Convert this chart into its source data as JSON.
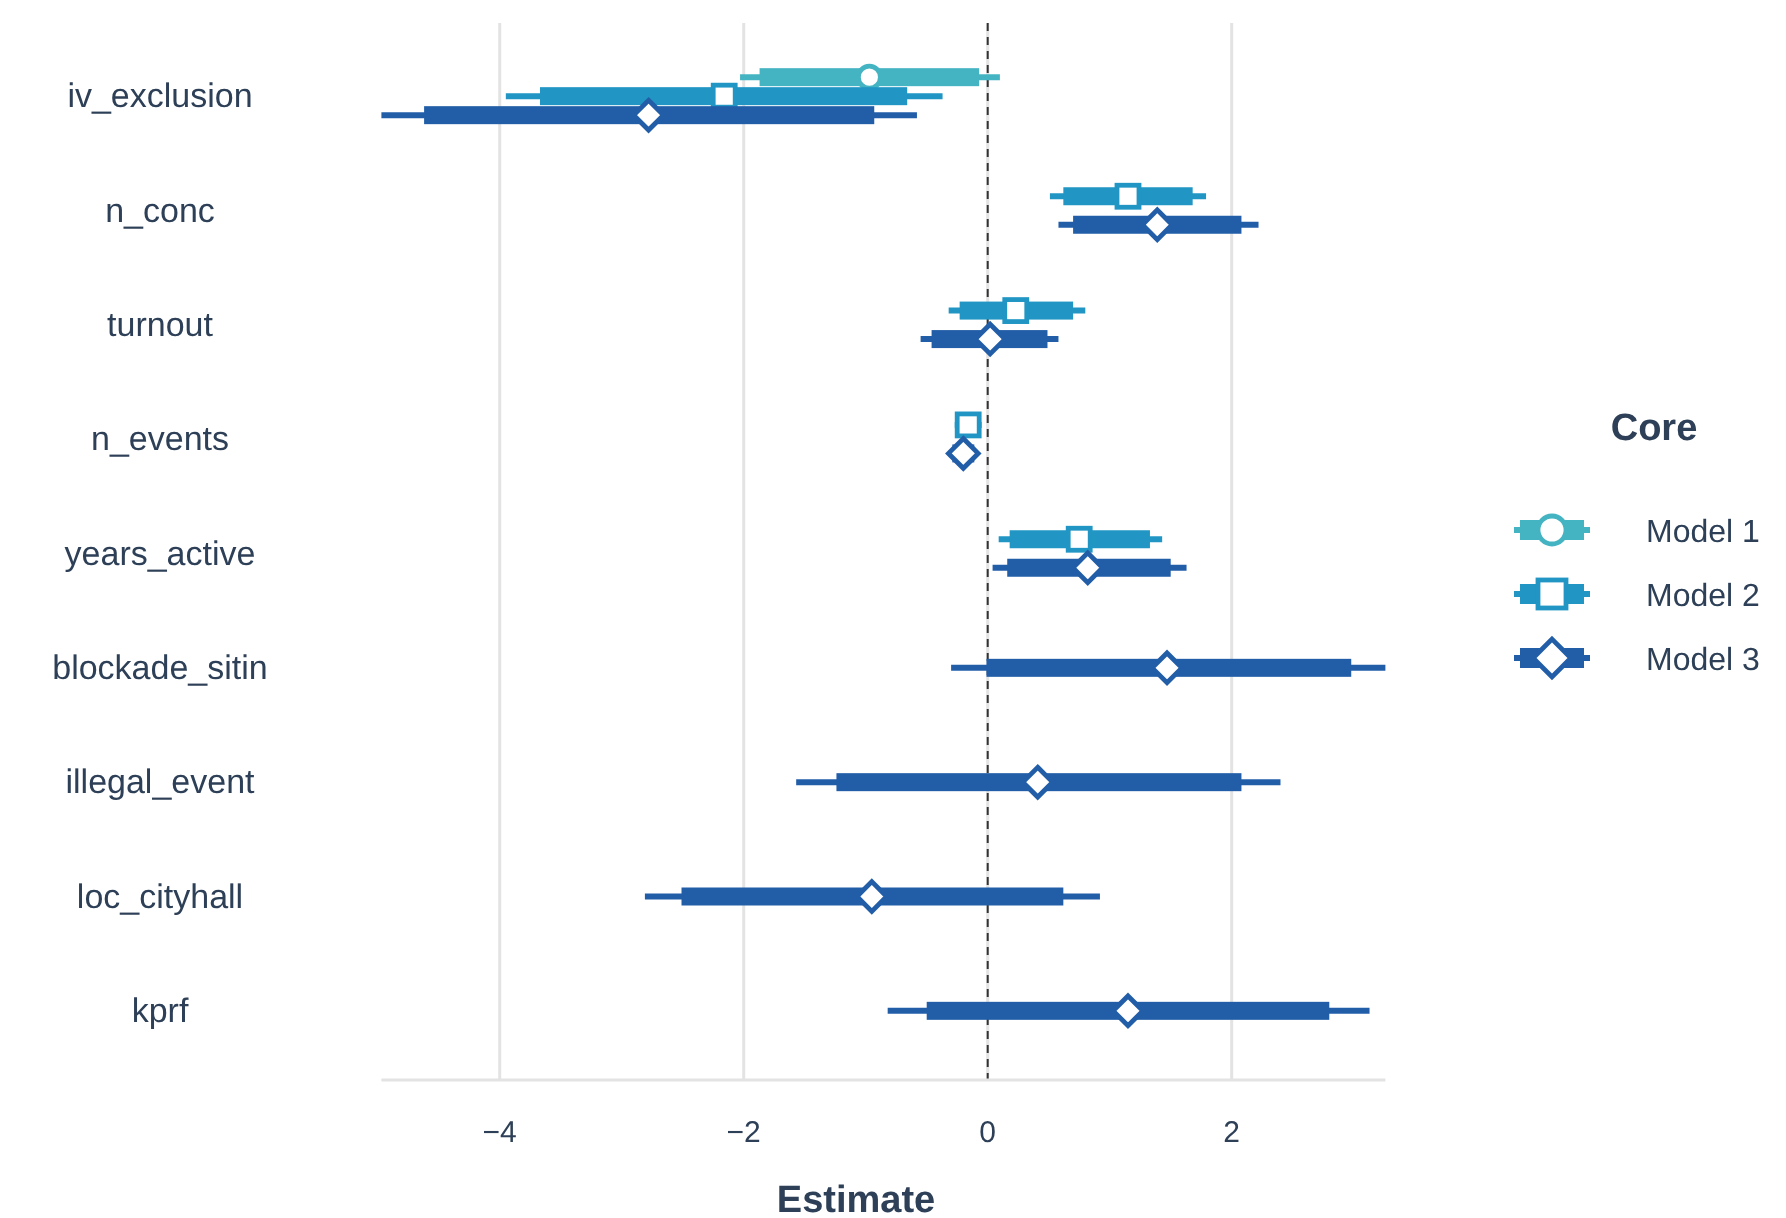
{
  "chart_data": {
    "type": "box",
    "orientation": "horizontal",
    "xlabel": "Estimate",
    "legend_title": "Core",
    "legend": "right",
    "grid": "x",
    "categories": [
      "iv_exclusion",
      "n_conc",
      "turnout",
      "n_events",
      "years_active",
      "blockade_sitin",
      "illegal_event",
      "loc_cityhall",
      "kprf"
    ],
    "xlim": [
      -4.97,
      3.26
    ],
    "xticks": [
      {
        "value": -4,
        "label": "−4"
      },
      {
        "value": -2,
        "label": "−2"
      },
      0,
      2
    ],
    "ref_lines": [
      {
        "axis": "x",
        "value": 0,
        "line_style": "dashed",
        "color": "#333333"
      }
    ],
    "series": [
      {
        "name": "Model 1",
        "color": "#45b4c2",
        "marker": "circle",
        "boxes": [
          {
            "low": -2.03,
            "q1": -1.87,
            "median": -0.97,
            "q3": -0.07,
            "high": 0.1
          },
          null,
          null,
          null,
          null,
          null,
          null,
          null,
          null
        ]
      },
      {
        "name": "Model 2",
        "color": "#2196c4",
        "marker": "square",
        "boxes": [
          {
            "low": -3.95,
            "q1": -3.67,
            "median": -2.16,
            "q3": -0.66,
            "high": -0.37
          },
          {
            "low": 0.51,
            "q1": 0.62,
            "median": 1.15,
            "q3": 1.68,
            "high": 1.79
          },
          {
            "low": -0.32,
            "q1": -0.23,
            "median": 0.23,
            "q3": 0.7,
            "high": 0.8
          },
          {
            "low": -0.27,
            "q1": -0.24,
            "median": -0.16,
            "q3": -0.08,
            "high": -0.05
          },
          {
            "low": 0.09,
            "q1": 0.18,
            "median": 0.75,
            "q3": 1.33,
            "high": 1.43
          },
          null,
          null,
          null,
          null
        ]
      },
      {
        "name": "Model 3",
        "color": "#225ea8",
        "marker": "diamond",
        "boxes": [
          {
            "low": -4.97,
            "q1": -4.62,
            "median": -2.78,
            "q3": -0.93,
            "high": -0.58
          },
          {
            "low": 0.58,
            "q1": 0.7,
            "median": 1.39,
            "q3": 2.08,
            "high": 2.22
          },
          {
            "low": -0.55,
            "q1": -0.46,
            "median": 0.02,
            "q3": 0.49,
            "high": 0.58
          },
          {
            "low": -0.32,
            "q1": -0.29,
            "median": -0.2,
            "q3": -0.11,
            "high": -0.08
          },
          {
            "low": 0.04,
            "q1": 0.16,
            "median": 0.82,
            "q3": 1.5,
            "high": 1.63
          },
          {
            "low": -0.3,
            "q1": -0.01,
            "median": 1.47,
            "q3": 2.98,
            "high": 3.26
          },
          {
            "low": -1.57,
            "q1": -1.24,
            "median": 0.41,
            "q3": 2.08,
            "high": 2.4
          },
          {
            "low": -2.81,
            "q1": -2.51,
            "median": -0.95,
            "q3": 0.62,
            "high": 0.92
          },
          {
            "low": -0.82,
            "q1": -0.5,
            "median": 1.15,
            "q3": 2.8,
            "high": 3.13
          }
        ]
      }
    ]
  }
}
